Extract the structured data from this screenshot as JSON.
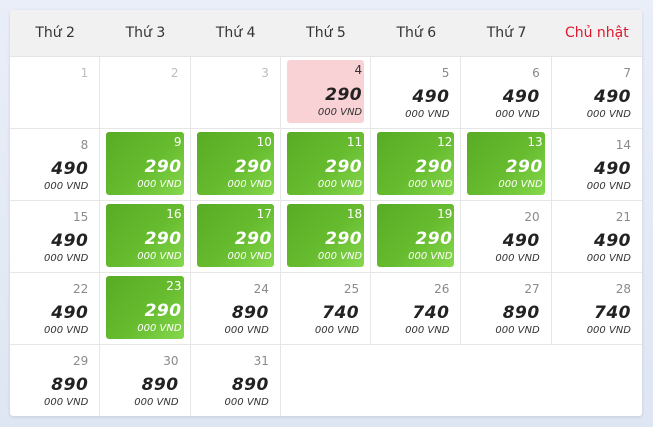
{
  "weekdays": [
    "Thứ 2",
    "Thứ 3",
    "Thứ 4",
    "Thứ 5",
    "Thứ 6",
    "Thứ 7",
    "Chủ nhật"
  ],
  "unit_label": "000 VND",
  "colors": {
    "cheapest": "#5fb52a",
    "selected": "#f8d2d5",
    "sunday": "#e0182e"
  },
  "days": [
    {
      "day": "1",
      "price": "",
      "state": "past"
    },
    {
      "day": "2",
      "price": "",
      "state": "past"
    },
    {
      "day": "3",
      "price": "",
      "state": "past"
    },
    {
      "day": "4",
      "price": "290",
      "state": "today"
    },
    {
      "day": "5",
      "price": "490",
      "state": "normal"
    },
    {
      "day": "6",
      "price": "490",
      "state": "normal"
    },
    {
      "day": "7",
      "price": "490",
      "state": "normal"
    },
    {
      "day": "8",
      "price": "490",
      "state": "normal"
    },
    {
      "day": "9",
      "price": "290",
      "state": "cheapest"
    },
    {
      "day": "10",
      "price": "290",
      "state": "cheapest"
    },
    {
      "day": "11",
      "price": "290",
      "state": "cheapest"
    },
    {
      "day": "12",
      "price": "290",
      "state": "cheapest"
    },
    {
      "day": "13",
      "price": "290",
      "state": "cheapest"
    },
    {
      "day": "14",
      "price": "490",
      "state": "normal"
    },
    {
      "day": "15",
      "price": "490",
      "state": "normal"
    },
    {
      "day": "16",
      "price": "290",
      "state": "cheapest"
    },
    {
      "day": "17",
      "price": "290",
      "state": "cheapest"
    },
    {
      "day": "18",
      "price": "290",
      "state": "cheapest"
    },
    {
      "day": "19",
      "price": "290",
      "state": "cheapest"
    },
    {
      "day": "20",
      "price": "490",
      "state": "normal"
    },
    {
      "day": "21",
      "price": "490",
      "state": "normal"
    },
    {
      "day": "22",
      "price": "490",
      "state": "normal"
    },
    {
      "day": "23",
      "price": "290",
      "state": "cheapest"
    },
    {
      "day": "24",
      "price": "890",
      "state": "normal"
    },
    {
      "day": "25",
      "price": "740",
      "state": "normal"
    },
    {
      "day": "26",
      "price": "740",
      "state": "normal"
    },
    {
      "day": "27",
      "price": "890",
      "state": "normal"
    },
    {
      "day": "28",
      "price": "740",
      "state": "normal"
    },
    {
      "day": "29",
      "price": "890",
      "state": "normal"
    },
    {
      "day": "30",
      "price": "890",
      "state": "normal"
    },
    {
      "day": "31",
      "price": "890",
      "state": "normal"
    }
  ]
}
